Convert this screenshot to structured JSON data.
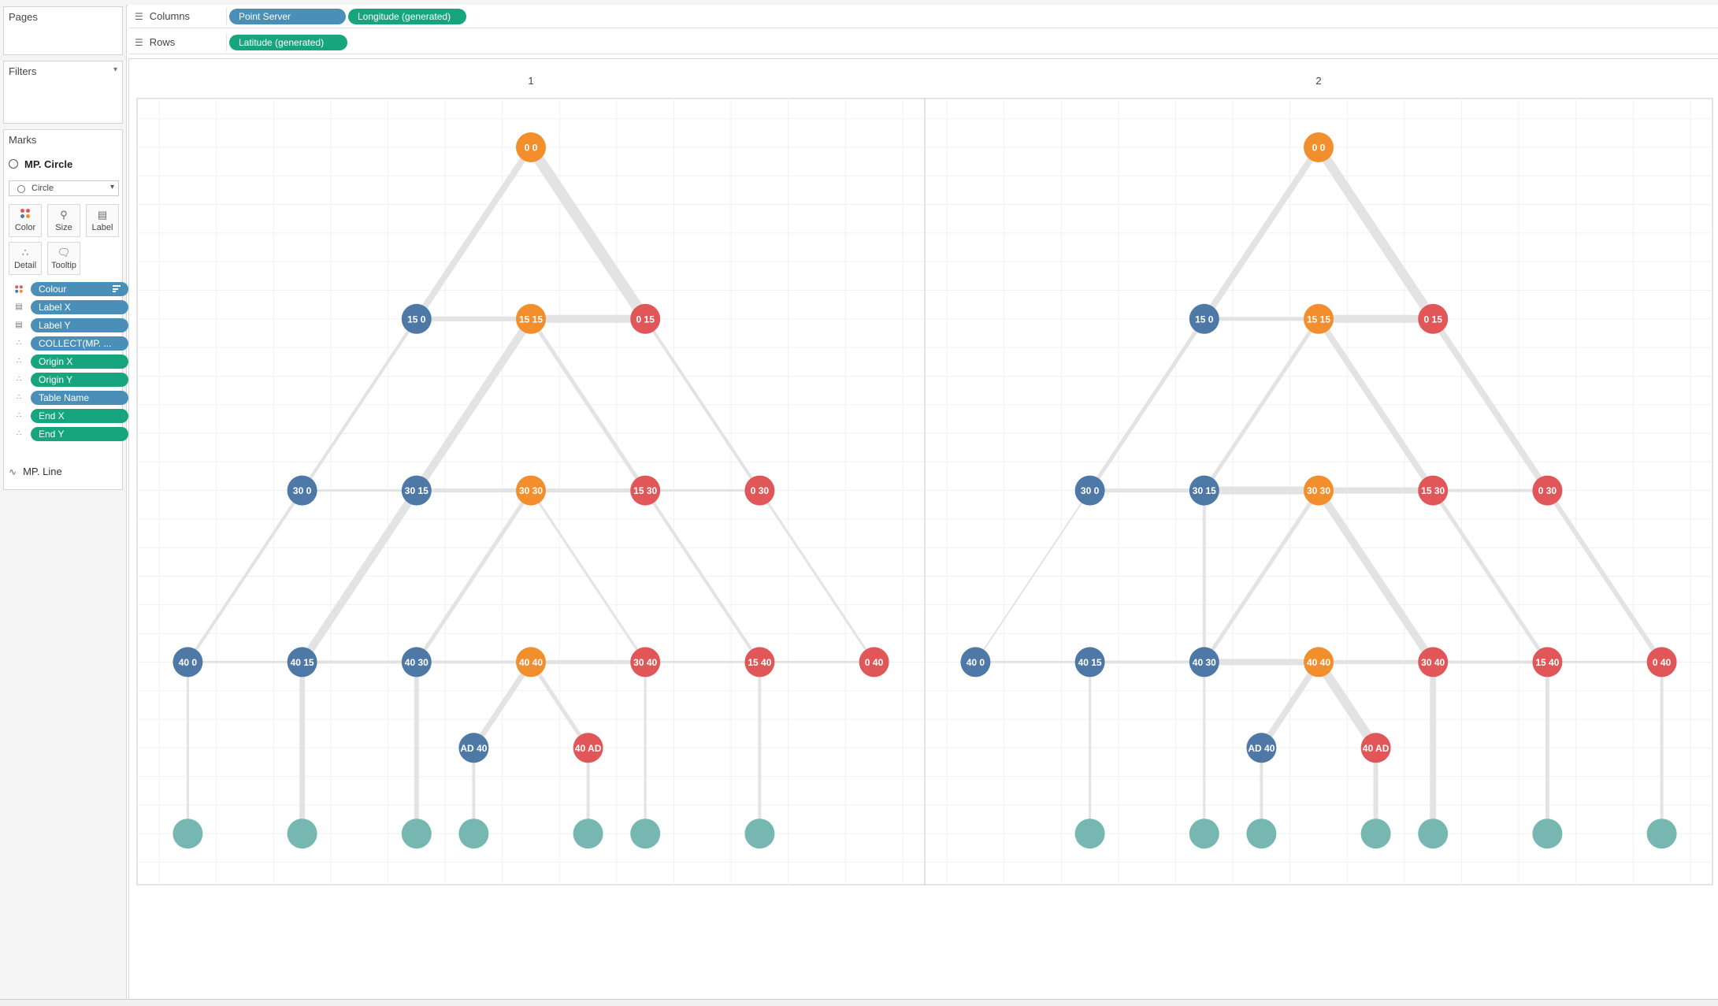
{
  "shelves": {
    "columns": {
      "label": "Columns",
      "pills": [
        {
          "text": "Point Server",
          "color": "#4a8fb8"
        },
        {
          "text": "Longitude (generated)",
          "color": "#17a57d"
        }
      ]
    },
    "rows": {
      "label": "Rows",
      "pills": [
        {
          "text": "Latitude (generated)",
          "color": "#17a57d"
        }
      ]
    }
  },
  "pages": {
    "title": "Pages"
  },
  "filters": {
    "title": "Filters"
  },
  "marks": {
    "title": "Marks",
    "layer_primary": "MP. Circle",
    "mark_type": "Circle",
    "buttons": {
      "color": "Color",
      "size": "Size",
      "label": "Label",
      "detail": "Detail",
      "tooltip": "Tooltip"
    },
    "fields": [
      {
        "text": "Colour",
        "kind": "color",
        "pill": "blue"
      },
      {
        "text": "Label X",
        "kind": "label",
        "pill": "blue"
      },
      {
        "text": "Label Y",
        "kind": "label",
        "pill": "blue"
      },
      {
        "text": "COLLECT(MP. ...",
        "kind": "detail",
        "pill": "blue"
      },
      {
        "text": "Origin X",
        "kind": "detail",
        "pill": "green"
      },
      {
        "text": "Origin Y",
        "kind": "detail",
        "pill": "green"
      },
      {
        "text": "Table Name",
        "kind": "detail",
        "pill": "blue"
      },
      {
        "text": "End X",
        "kind": "detail",
        "pill": "green"
      },
      {
        "text": "End Y",
        "kind": "detail",
        "pill": "green"
      }
    ],
    "layer_secondary": "MP. Line"
  },
  "colors": {
    "blue": "#4e79a7",
    "orange": "#f28e2b",
    "red": "#e15759",
    "teal": "#76b7b2",
    "edge": "#e3e3e3"
  },
  "panels": [
    {
      "header": "1",
      "nodes": [
        {
          "id": "a",
          "label": "0 0",
          "color": "orange",
          "lon": 0,
          "lat": 0
        },
        {
          "id": "b",
          "label": "15 0",
          "color": "blue",
          "lon": -2,
          "lat": -3
        },
        {
          "id": "c",
          "label": "15 15",
          "color": "orange",
          "lon": 0,
          "lat": -3
        },
        {
          "id": "d",
          "label": "0 15",
          "color": "red",
          "lon": 2,
          "lat": -3
        },
        {
          "id": "e",
          "label": "30 0",
          "color": "blue",
          "lon": -4,
          "lat": -6
        },
        {
          "id": "f",
          "label": "30 15",
          "color": "blue",
          "lon": -2,
          "lat": -6
        },
        {
          "id": "g",
          "label": "30 30",
          "color": "orange",
          "lon": 0,
          "lat": -6
        },
        {
          "id": "h",
          "label": "15 30",
          "color": "red",
          "lon": 2,
          "lat": -6
        },
        {
          "id": "i",
          "label": "0 30",
          "color": "red",
          "lon": 4,
          "lat": -6
        },
        {
          "id": "j",
          "label": "40 0",
          "color": "blue",
          "lon": -6,
          "lat": -9
        },
        {
          "id": "k",
          "label": "40 15",
          "color": "blue",
          "lon": -4,
          "lat": -9
        },
        {
          "id": "l",
          "label": "40 30",
          "color": "blue",
          "lon": -2,
          "lat": -9
        },
        {
          "id": "m",
          "label": "40 40",
          "color": "orange",
          "lon": 0,
          "lat": -9
        },
        {
          "id": "n",
          "label": "30 40",
          "color": "red",
          "lon": 2,
          "lat": -9
        },
        {
          "id": "o",
          "label": "15 40",
          "color": "red",
          "lon": 4,
          "lat": -9
        },
        {
          "id": "p",
          "label": "0 40",
          "color": "red",
          "lon": 6,
          "lat": -9
        },
        {
          "id": "q",
          "label": "AD 40",
          "color": "blue",
          "lon": -1,
          "lat": -10.5
        },
        {
          "id": "r",
          "label": "40 AD",
          "color": "red",
          "lon": 1,
          "lat": -10.5
        },
        {
          "id": "t1",
          "label": "",
          "color": "teal",
          "lon": -6,
          "lat": -12
        },
        {
          "id": "t2",
          "label": "",
          "color": "teal",
          "lon": -4,
          "lat": -12
        },
        {
          "id": "t3",
          "label": "",
          "color": "teal",
          "lon": -2,
          "lat": -12
        },
        {
          "id": "t4",
          "label": "",
          "color": "teal",
          "lon": -1,
          "lat": -12
        },
        {
          "id": "t5",
          "label": "",
          "color": "teal",
          "lon": 1,
          "lat": -12
        },
        {
          "id": "t6",
          "label": "",
          "color": "teal",
          "lon": 2,
          "lat": -12
        },
        {
          "id": "t7",
          "label": "",
          "color": "teal",
          "lon": 4,
          "lat": -12
        }
      ],
      "edges": [
        [
          "a",
          "b",
          8
        ],
        [
          "a",
          "d",
          14
        ],
        [
          "b",
          "c",
          6
        ],
        [
          "c",
          "d",
          10
        ],
        [
          "b",
          "e",
          4
        ],
        [
          "c",
          "f",
          10
        ],
        [
          "c",
          "h",
          5
        ],
        [
          "d",
          "i",
          4
        ],
        [
          "e",
          "f",
          3
        ],
        [
          "f",
          "g",
          5
        ],
        [
          "g",
          "h",
          5
        ],
        [
          "h",
          "i",
          3
        ],
        [
          "e",
          "j",
          4
        ],
        [
          "f",
          "k",
          10
        ],
        [
          "g",
          "l",
          5
        ],
        [
          "g",
          "n",
          3
        ],
        [
          "h",
          "o",
          4
        ],
        [
          "i",
          "p",
          3
        ],
        [
          "j",
          "k",
          3
        ],
        [
          "k",
          "l",
          4
        ],
        [
          "l",
          "m",
          4
        ],
        [
          "m",
          "n",
          5
        ],
        [
          "n",
          "o",
          3
        ],
        [
          "o",
          "p",
          3
        ],
        [
          "m",
          "q",
          7
        ],
        [
          "m",
          "r",
          5
        ],
        [
          "j",
          "t1",
          3
        ],
        [
          "k",
          "t2",
          7
        ],
        [
          "l",
          "t3",
          6
        ],
        [
          "q",
          "t4",
          4
        ],
        [
          "r",
          "t5",
          4
        ],
        [
          "n",
          "t6",
          3
        ],
        [
          "o",
          "t7",
          4
        ]
      ]
    },
    {
      "header": "2",
      "nodes": [
        {
          "id": "a",
          "label": "0 0",
          "color": "orange",
          "lon": 0,
          "lat": 0
        },
        {
          "id": "b",
          "label": "15 0",
          "color": "blue",
          "lon": -2,
          "lat": -3
        },
        {
          "id": "c",
          "label": "15 15",
          "color": "orange",
          "lon": 0,
          "lat": -3
        },
        {
          "id": "d",
          "label": "0 15",
          "color": "red",
          "lon": 2,
          "lat": -3
        },
        {
          "id": "e",
          "label": "30 0",
          "color": "blue",
          "lon": -4,
          "lat": -6
        },
        {
          "id": "f",
          "label": "30 15",
          "color": "blue",
          "lon": -2,
          "lat": -6
        },
        {
          "id": "g",
          "label": "30 30",
          "color": "orange",
          "lon": 0,
          "lat": -6
        },
        {
          "id": "h",
          "label": "15 30",
          "color": "red",
          "lon": 2,
          "lat": -6
        },
        {
          "id": "i",
          "label": "0 30",
          "color": "red",
          "lon": 4,
          "lat": -6
        },
        {
          "id": "j",
          "label": "40 0",
          "color": "blue",
          "lon": -6,
          "lat": -9
        },
        {
          "id": "k",
          "label": "40 15",
          "color": "blue",
          "lon": -4,
          "lat": -9
        },
        {
          "id": "l",
          "label": "40 30",
          "color": "blue",
          "lon": -2,
          "lat": -9
        },
        {
          "id": "m",
          "label": "40 40",
          "color": "orange",
          "lon": 0,
          "lat": -9
        },
        {
          "id": "n",
          "label": "30 40",
          "color": "red",
          "lon": 2,
          "lat": -9
        },
        {
          "id": "o",
          "label": "15 40",
          "color": "red",
          "lon": 4,
          "lat": -9
        },
        {
          "id": "p",
          "label": "0 40",
          "color": "red",
          "lon": 6,
          "lat": -9
        },
        {
          "id": "q",
          "label": "AD 40",
          "color": "blue",
          "lon": -1,
          "lat": -10.5
        },
        {
          "id": "r",
          "label": "40 AD",
          "color": "red",
          "lon": 1,
          "lat": -10.5
        },
        {
          "id": "t1",
          "label": "",
          "color": "teal",
          "lon": -4,
          "lat": -12
        },
        {
          "id": "t2",
          "label": "",
          "color": "teal",
          "lon": -2,
          "lat": -12
        },
        {
          "id": "t3",
          "label": "",
          "color": "teal",
          "lon": -1,
          "lat": -12
        },
        {
          "id": "t4",
          "label": "",
          "color": "teal",
          "lon": 1,
          "lat": -12
        },
        {
          "id": "t5",
          "label": "",
          "color": "teal",
          "lon": 2,
          "lat": -12
        },
        {
          "id": "t6",
          "label": "",
          "color": "teal",
          "lon": 4,
          "lat": -12
        },
        {
          "id": "t7",
          "label": "",
          "color": "teal",
          "lon": 6,
          "lat": -12
        }
      ],
      "edges": [
        [
          "a",
          "b",
          8
        ],
        [
          "a",
          "d",
          12
        ],
        [
          "b",
          "c",
          5
        ],
        [
          "c",
          "d",
          10
        ],
        [
          "b",
          "e",
          5
        ],
        [
          "c",
          "f",
          5
        ],
        [
          "c",
          "h",
          8
        ],
        [
          "d",
          "i",
          8
        ],
        [
          "e",
          "f",
          5
        ],
        [
          "f",
          "g",
          10
        ],
        [
          "g",
          "h",
          8
        ],
        [
          "h",
          "i",
          4
        ],
        [
          "e",
          "j",
          2
        ],
        [
          "f",
          "l",
          4
        ],
        [
          "g",
          "l",
          5
        ],
        [
          "g",
          "n",
          10
        ],
        [
          "h",
          "o",
          5
        ],
        [
          "i",
          "p",
          6
        ],
        [
          "j",
          "k",
          3
        ],
        [
          "k",
          "l",
          4
        ],
        [
          "l",
          "m",
          8
        ],
        [
          "m",
          "n",
          5
        ],
        [
          "n",
          "o",
          4
        ],
        [
          "o",
          "p",
          3
        ],
        [
          "m",
          "q",
          8
        ],
        [
          "m",
          "r",
          12
        ],
        [
          "k",
          "t1",
          3
        ],
        [
          "l",
          "t2",
          3
        ],
        [
          "q",
          "t3",
          4
        ],
        [
          "r",
          "t4",
          6
        ],
        [
          "n",
          "t5",
          8
        ],
        [
          "o",
          "t6",
          5
        ],
        [
          "p",
          "t7",
          4
        ]
      ]
    }
  ]
}
